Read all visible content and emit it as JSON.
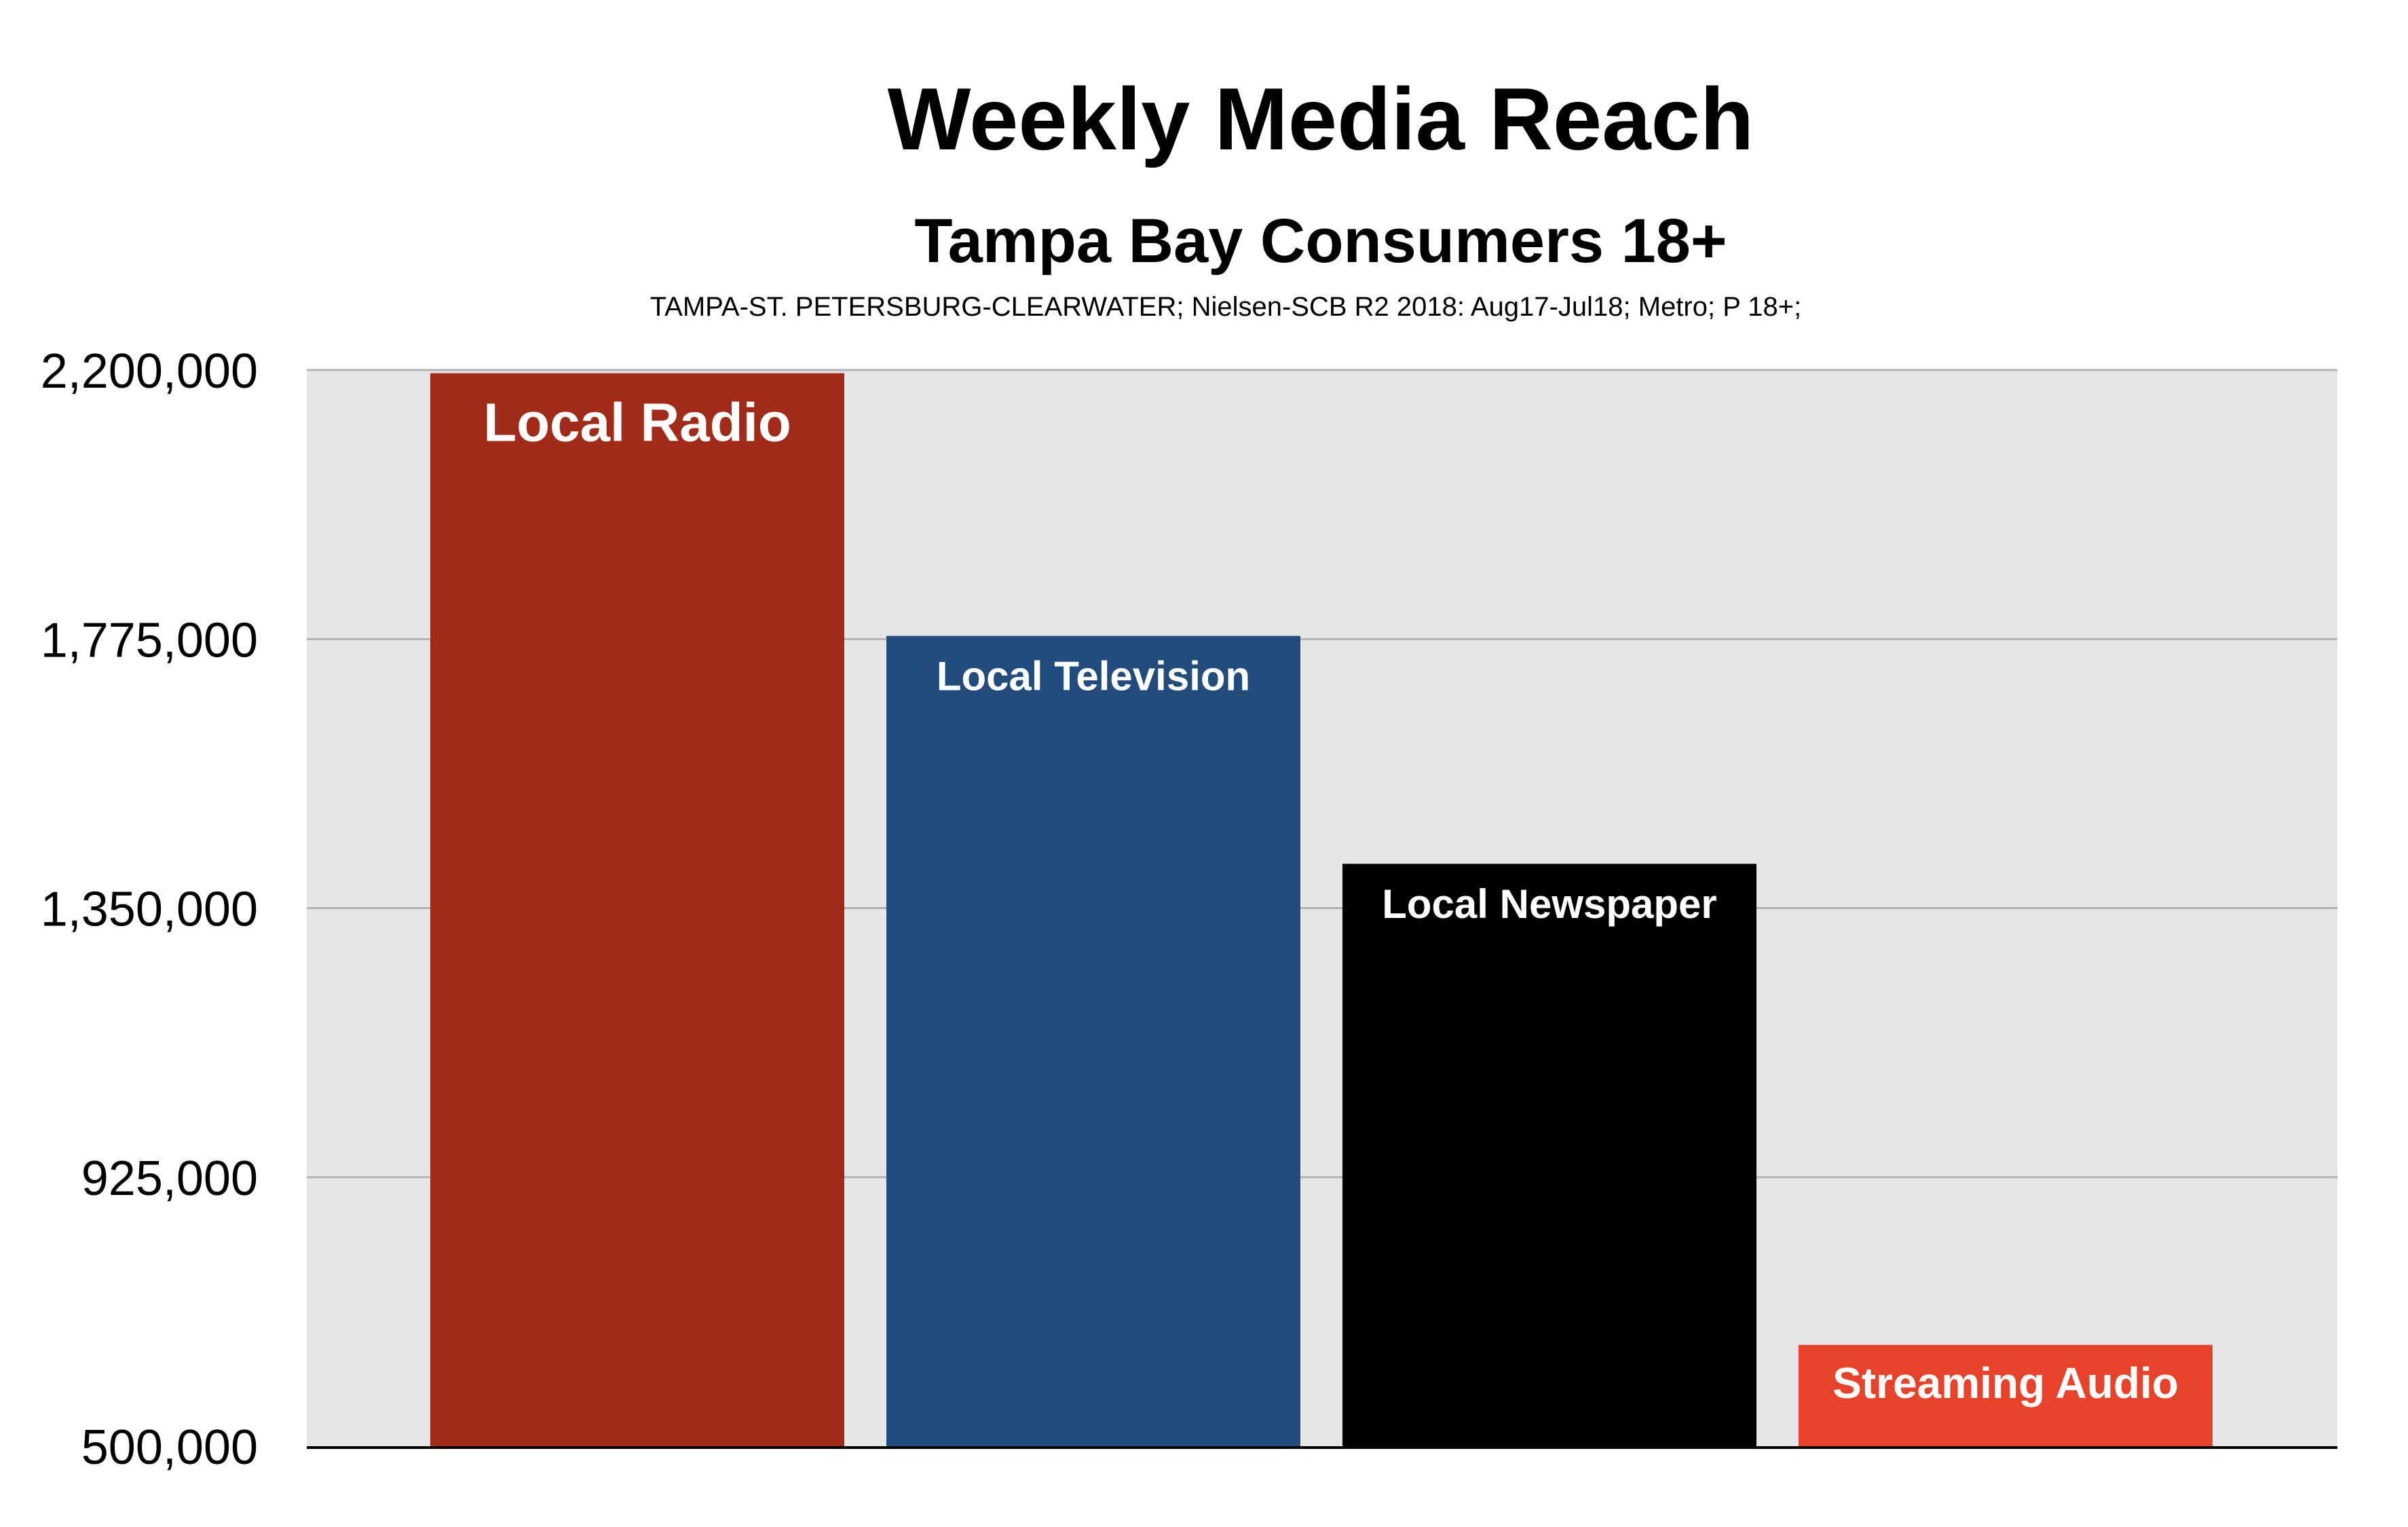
{
  "chart_data": {
    "type": "bar",
    "title": "Weekly Media Reach",
    "subtitle": "Tampa Bay Consumers 18+",
    "source_note": "TAMPA-ST. PETERSBURG-CLEARWATER; Nielsen-SCB R2 2018: Aug17-Jul18; Metro; P 18+;",
    "categories": [
      "Local Radio",
      "Local Television",
      "Local Newspaper",
      "Streaming Audio"
    ],
    "values": [
      2195000,
      1780000,
      1420000,
      660000
    ],
    "colors": [
      "#a22a19",
      "#214c7b",
      "#000000",
      "#e8432a"
    ],
    "ylim": [
      500000,
      2200000
    ],
    "yticks": [
      500000,
      925000,
      1350000,
      1775000,
      2200000
    ],
    "ytick_labels": [
      "500,000",
      "925,000",
      "1,350,000",
      "1,775,000",
      "2,200,000"
    ],
    "xlabel": "",
    "ylabel": "",
    "grid": true,
    "legend": false,
    "background": "#e6e5e8",
    "gridline_color": "#b2b2b4"
  }
}
